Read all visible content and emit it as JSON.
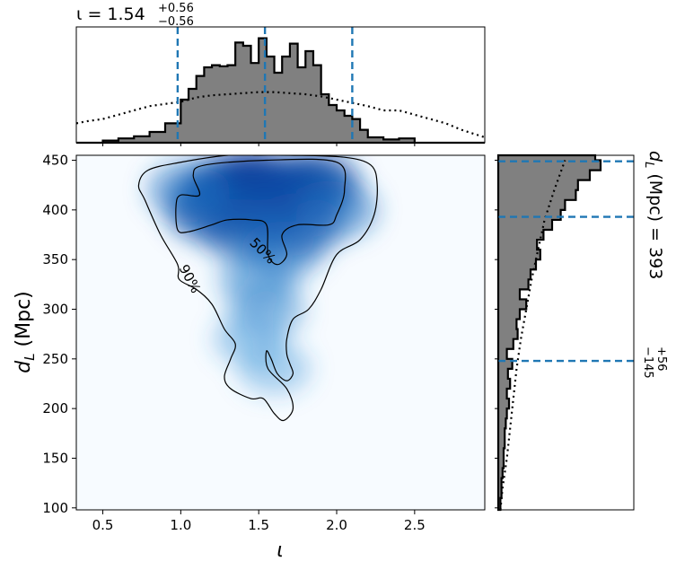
{
  "chart_data": {
    "type": "corner",
    "top_title": {
      "text": "ι = 1.54",
      "sup": "+0.56",
      "sub": "−0.56"
    },
    "right_title": {
      "text": "d",
      "sub_L": "L",
      "rest": " (Mpc) = 393",
      "sup": "+56",
      "sub": "−145"
    },
    "xlabel": "ι",
    "ylabel": {
      "main": "d",
      "sub": "L",
      "rest": " (Mpc)"
    },
    "xlim": [
      0.33,
      2.95
    ],
    "ylim": [
      98,
      455
    ],
    "xticks": [
      "0.5",
      "1.0",
      "1.5",
      "2.0",
      "2.5"
    ],
    "yticks": [
      "100",
      "150",
      "200",
      "250",
      "300",
      "350",
      "400",
      "450"
    ],
    "contour_labels": [
      "50%",
      "90%"
    ],
    "iota_quantiles": [
      0.98,
      1.54,
      2.1
    ],
    "dl_quantiles": [
      248,
      393,
      449
    ],
    "accent_color": "#1f77b4",
    "hist_fill": "#808080",
    "cmap": "Blues",
    "iota_posterior": {
      "bin_edges": [
        0.33,
        0.5,
        0.6,
        0.7,
        0.8,
        0.9,
        1.0,
        1.05,
        1.1,
        1.15,
        1.2,
        1.25,
        1.3,
        1.35,
        1.4,
        1.45,
        1.5,
        1.55,
        1.6,
        1.65,
        1.7,
        1.75,
        1.8,
        1.85,
        1.9,
        1.95,
        2.0,
        2.05,
        2.1,
        2.15,
        2.2,
        2.3,
        2.4,
        2.5,
        2.95
      ],
      "density": [
        0,
        0.02,
        0.04,
        0.06,
        0.1,
        0.18,
        0.4,
        0.5,
        0.62,
        0.7,
        0.72,
        0.71,
        0.72,
        0.93,
        0.9,
        0.74,
        0.97,
        0.8,
        0.65,
        0.8,
        0.92,
        0.7,
        0.85,
        0.72,
        0.45,
        0.35,
        0.3,
        0.25,
        0.22,
        0.12,
        0.05,
        0.03,
        0.04,
        0
      ]
    },
    "iota_prior": {
      "x": [
        0.33,
        0.4,
        0.5,
        0.6,
        0.7,
        0.8,
        0.9,
        1.0,
        1.1,
        1.2,
        1.3,
        1.4,
        1.5,
        1.6,
        1.7,
        1.8,
        1.9,
        2.0,
        2.1,
        2.2,
        2.3,
        2.4,
        2.5,
        2.6,
        2.7,
        2.8,
        2.95
      ],
      "density": [
        0.18,
        0.2,
        0.22,
        0.26,
        0.3,
        0.34,
        0.36,
        0.38,
        0.42,
        0.44,
        0.45,
        0.46,
        0.47,
        0.47,
        0.46,
        0.45,
        0.43,
        0.4,
        0.37,
        0.34,
        0.3,
        0.3,
        0.26,
        0.22,
        0.18,
        0.12,
        0.05
      ]
    },
    "dl_posterior": {
      "bin_edges": [
        98,
        110,
        120,
        130,
        140,
        150,
        160,
        170,
        180,
        190,
        200,
        210,
        220,
        230,
        240,
        250,
        260,
        270,
        280,
        290,
        300,
        310,
        320,
        330,
        340,
        350,
        360,
        370,
        380,
        390,
        400,
        410,
        420,
        430,
        440,
        450,
        455
      ],
      "density": [
        0.02,
        0.03,
        0.03,
        0.04,
        0.05,
        0.05,
        0.06,
        0.06,
        0.07,
        0.08,
        0.1,
        0.08,
        0.11,
        0.09,
        0.13,
        0.08,
        0.14,
        0.18,
        0.17,
        0.2,
        0.26,
        0.2,
        0.28,
        0.3,
        0.35,
        0.39,
        0.36,
        0.42,
        0.5,
        0.58,
        0.62,
        0.72,
        0.74,
        0.85,
        0.95,
        0.9
      ]
    },
    "dl_prior": {
      "y": [
        98,
        120,
        150,
        180,
        210,
        240,
        270,
        300,
        330,
        360,
        390,
        420,
        450
      ],
      "density": [
        0.02,
        0.04,
        0.08,
        0.11,
        0.14,
        0.17,
        0.21,
        0.26,
        0.31,
        0.37,
        0.43,
        0.52,
        0.62
      ]
    },
    "density_blobs": [
      {
        "x": 1.45,
        "y": 425,
        "w": 1.0
      },
      {
        "x": 1.3,
        "y": 420,
        "w": 0.9
      },
      {
        "x": 1.7,
        "y": 420,
        "w": 0.9
      },
      {
        "x": 1.85,
        "y": 425,
        "w": 0.8
      },
      {
        "x": 1.2,
        "y": 400,
        "w": 0.75
      },
      {
        "x": 1.55,
        "y": 400,
        "w": 0.8
      },
      {
        "x": 1.75,
        "y": 385,
        "w": 0.7
      },
      {
        "x": 1.4,
        "y": 380,
        "w": 0.6
      },
      {
        "x": 1.65,
        "y": 360,
        "w": 0.4
      },
      {
        "x": 1.5,
        "y": 330,
        "w": 0.3
      },
      {
        "x": 1.55,
        "y": 300,
        "w": 0.22
      },
      {
        "x": 1.45,
        "y": 270,
        "w": 0.12
      },
      {
        "x": 1.6,
        "y": 240,
        "w": 0.08
      },
      {
        "x": 1.05,
        "y": 420,
        "w": 0.4
      },
      {
        "x": 2.0,
        "y": 400,
        "w": 0.4
      }
    ],
    "contour_50": [
      [
        1.15,
        445
      ],
      [
        1.55,
        450
      ],
      [
        2.0,
        448
      ],
      [
        2.05,
        420
      ],
      [
        2.0,
        395
      ],
      [
        1.95,
        385
      ],
      [
        1.75,
        385
      ],
      [
        1.65,
        375
      ],
      [
        1.68,
        355
      ],
      [
        1.62,
        345
      ],
      [
        1.56,
        355
      ],
      [
        1.55,
        385
      ],
      [
        1.45,
        390
      ],
      [
        1.3,
        390
      ],
      [
        1.2,
        385
      ],
      [
        1.05,
        378
      ],
      [
        0.98,
        380
      ],
      [
        0.97,
        405
      ],
      [
        1.0,
        415
      ],
      [
        1.12,
        415
      ],
      [
        1.08,
        435
      ]
    ],
    "contour_90": [
      [
        1.0,
        448
      ],
      [
        1.3,
        455
      ],
      [
        1.5,
        455
      ],
      [
        1.7,
        455
      ],
      [
        2.05,
        453
      ],
      [
        2.22,
        445
      ],
      [
        2.26,
        425
      ],
      [
        2.24,
        395
      ],
      [
        2.15,
        370
      ],
      [
        2.0,
        355
      ],
      [
        1.9,
        320
      ],
      [
        1.82,
        300
      ],
      [
        1.72,
        290
      ],
      [
        1.68,
        270
      ],
      [
        1.68,
        255
      ],
      [
        1.7,
        245
      ],
      [
        1.72,
        235
      ],
      [
        1.68,
        228
      ],
      [
        1.62,
        235
      ],
      [
        1.58,
        250
      ],
      [
        1.55,
        258
      ],
      [
        1.56,
        240
      ],
      [
        1.68,
        220
      ],
      [
        1.72,
        200
      ],
      [
        1.66,
        188
      ],
      [
        1.6,
        195
      ],
      [
        1.53,
        210
      ],
      [
        1.45,
        210
      ],
      [
        1.32,
        220
      ],
      [
        1.28,
        232
      ],
      [
        1.32,
        250
      ],
      [
        1.35,
        265
      ],
      [
        1.28,
        280
      ],
      [
        1.2,
        305
      ],
      [
        1.1,
        320
      ],
      [
        0.99,
        330
      ],
      [
        0.98,
        345
      ],
      [
        0.87,
        375
      ],
      [
        0.77,
        410
      ],
      [
        0.73,
        425
      ],
      [
        0.79,
        440
      ]
    ]
  }
}
